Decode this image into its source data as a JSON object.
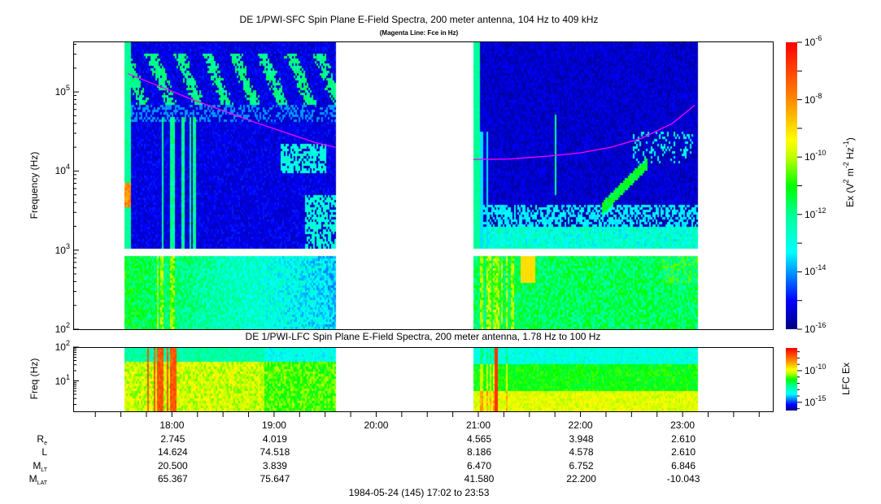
{
  "chart_data": {
    "type": "heatmap",
    "title": "DE 1/PWI-SFC  Spin Plane E-Field Spectra, 200 meter antenna, 104 Hz to 409 kHz",
    "subtitle": "(Magenta Line: Fce in Hz)",
    "panels": [
      {
        "name": "SFC",
        "ylabel": "Frequency (Hz)",
        "yscale": "log",
        "ylim_hz": [
          100,
          409000
        ],
        "yticks": [
          {
            "base": "10",
            "exp": "2",
            "value": 100
          },
          {
            "base": "10",
            "exp": "3",
            "value": 1000
          },
          {
            "base": "10",
            "exp": "4",
            "value": 10000
          },
          {
            "base": "10",
            "exp": "5",
            "value": 100000
          }
        ],
        "colorbar": {
          "label_main": "Ex (V",
          "label_sup1": "2",
          "label_mid": " m",
          "label_sup2": "-2",
          "label_mid2": " Hz",
          "label_sup3": "-1",
          "label_end": ")",
          "range_log10": [
            -16,
            -6
          ],
          "ticks": [
            {
              "base": "10",
              "exp": "-6",
              "value": -6
            },
            {
              "base": "10",
              "exp": "-8",
              "value": -8
            },
            {
              "base": "10",
              "exp": "-10",
              "value": -10
            },
            {
              "base": "10",
              "exp": "-12",
              "value": -12
            },
            {
              "base": "10",
              "exp": "-14",
              "value": -14
            },
            {
              "base": "10",
              "exp": "-16",
              "value": -16
            }
          ]
        }
      },
      {
        "name": "LFC",
        "title": "DE 1/PWI-LFC  Spin Plane E-Field Spectra, 200 meter antenna, 1.78 Hz to 100 Hz",
        "ylabel": "Freq (Hz)",
        "yscale": "log",
        "ylim_hz": [
          1.78,
          100
        ],
        "yticks": [
          {
            "base": "10",
            "exp": "1",
            "value": 10
          },
          {
            "base": "10",
            "exp": "2",
            "value": 100
          }
        ],
        "colorbar": {
          "label": "LFC Ex",
          "range_log10": [
            -16.3,
            -6.4
          ],
          "ticks": [
            {
              "base": "10",
              "exp": "-10",
              "value": -10
            },
            {
              "base": "10",
              "exp": "-15",
              "value": -15
            }
          ]
        }
      }
    ],
    "time_range": [
      "17:02",
      "23:53"
    ],
    "data_segments": [
      [
        "17:32",
        "19:36"
      ],
      [
        "20:57",
        "23:09"
      ]
    ],
    "fce_line": [
      [
        [
          17.57,
          170000
        ],
        [
          17.9,
          115000
        ],
        [
          18.2,
          80000
        ],
        [
          18.5,
          58000
        ],
        [
          18.8,
          42000
        ],
        [
          19.1,
          31000
        ],
        [
          19.4,
          23000
        ],
        [
          19.6,
          20000
        ]
      ],
      [
        [
          20.95,
          14000
        ],
        [
          21.3,
          14200
        ],
        [
          21.7,
          15500
        ],
        [
          22.0,
          17000
        ],
        [
          22.3,
          20000
        ],
        [
          22.6,
          26000
        ],
        [
          22.9,
          40000
        ],
        [
          23.12,
          68000
        ]
      ]
    ],
    "colors": {
      "fce": "#ff00ff"
    },
    "xaxis": {
      "hours": [
        "18:00",
        "19:00",
        "20:00",
        "21:00",
        "22:00",
        "23:00"
      ],
      "rows": [
        {
          "label": "R",
          "sub": "e",
          "values": [
            "2.745",
            "4.019",
            "",
            "4.565",
            "3.948",
            "2.610"
          ]
        },
        {
          "label": "L",
          "sub": "",
          "values": [
            "14.624",
            "74.518",
            "",
            "8.186",
            "4.578",
            "2.610"
          ]
        },
        {
          "label": "M",
          "sub": "LT",
          "values": [
            "20.500",
            "3.839",
            "",
            "6.470",
            "6.752",
            "6.846"
          ]
        },
        {
          "label": "M",
          "sub": "LAT",
          "values": [
            "65.367",
            "75.647",
            "",
            "41.580",
            "22.200",
            "-10.043"
          ]
        }
      ],
      "footer": "1984-05-24 (145) 17:02 to 23:53"
    }
  }
}
